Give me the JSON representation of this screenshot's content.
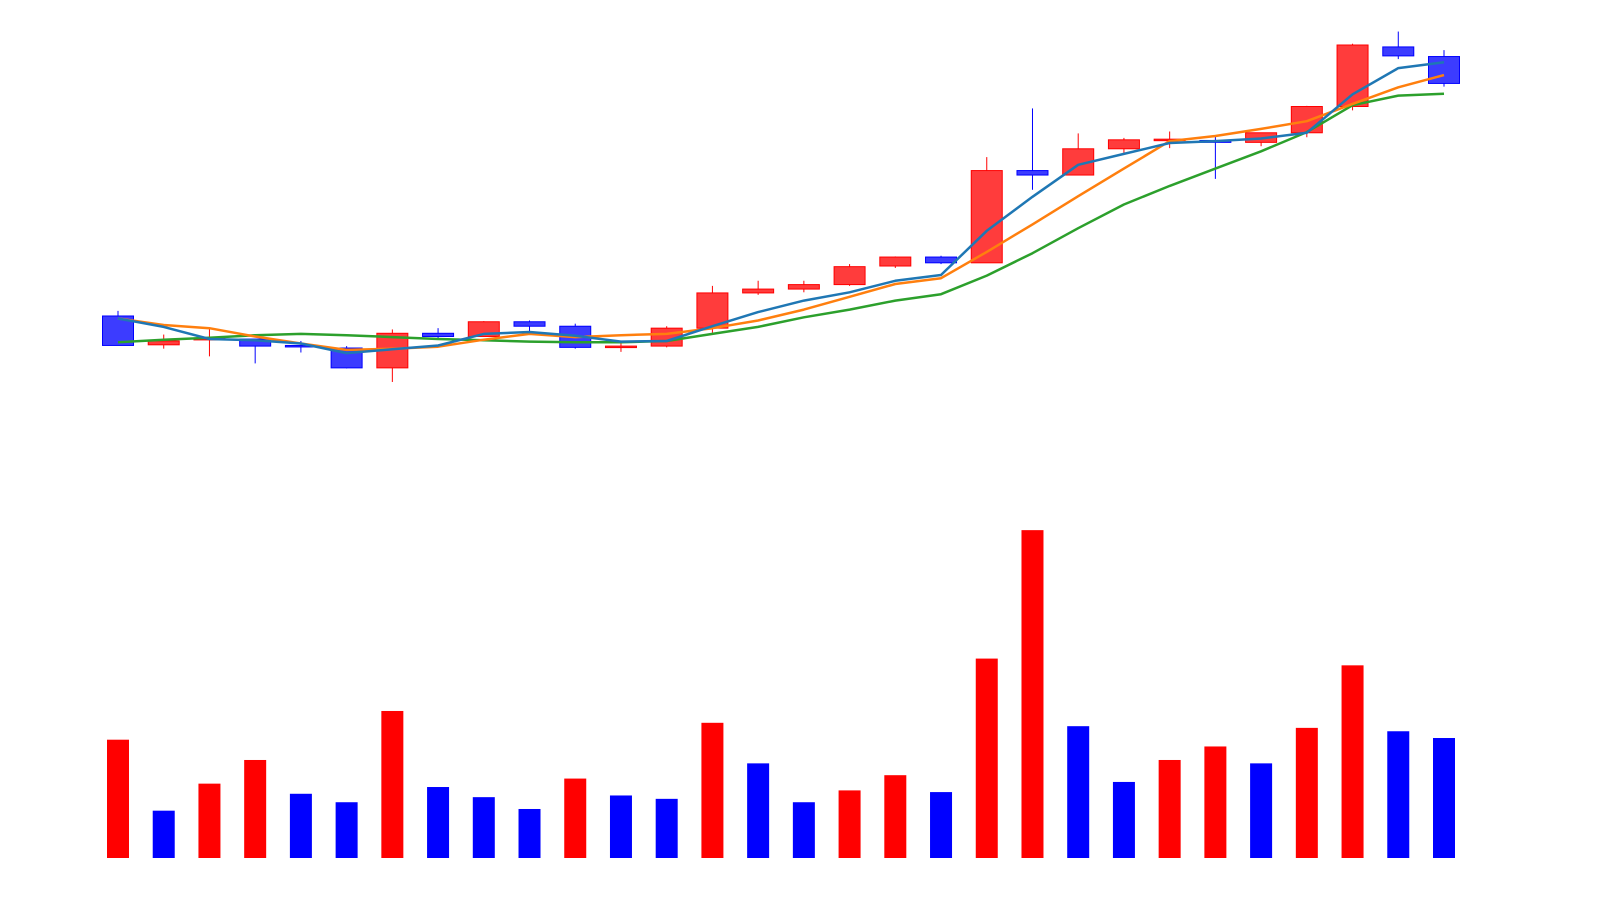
{
  "colors": {
    "up": "#ff0000",
    "down": "#0000ff",
    "up_body": "#ff3c3c",
    "down_body": "#3c3cff",
    "ma_fast": "#1f77b4",
    "ma_mid": "#ff7f0e",
    "ma_slow": "#2ca02c"
  },
  "chart_data": [
    {
      "type": "candlestick",
      "grid": false,
      "ylim": [
        -32,
        0
      ],
      "candles": [
        {
          "open": -21.15,
          "high": -20.75,
          "low": -23.15,
          "close": -23.45,
          "dir": "down"
        },
        {
          "open": -23.4,
          "high": -22.6,
          "low": -23.7,
          "close": -23.1,
          "dir": "up"
        },
        {
          "open": -23.0,
          "high": -22.1,
          "low": -24.3,
          "close": -22.9,
          "dir": "up"
        },
        {
          "open": -22.95,
          "high": -22.95,
          "low": -24.85,
          "close": -23.5,
          "dir": "down"
        },
        {
          "open": -23.45,
          "high": -23.1,
          "low": -24.0,
          "close": -23.45,
          "dir": "down"
        },
        {
          "open": -23.65,
          "high": -23.5,
          "low": -25.25,
          "close": -25.2,
          "dir": "down"
        },
        {
          "open": -25.2,
          "high": -22.2,
          "low": -26.3,
          "close": -22.5,
          "dir": "up"
        },
        {
          "open": -22.5,
          "high": -22.1,
          "low": -23.0,
          "close": -22.75,
          "dir": "down"
        },
        {
          "open": -22.75,
          "high": -21.55,
          "low": -22.75,
          "close": -21.6,
          "dir": "up"
        },
        {
          "open": -21.6,
          "high": -21.5,
          "low": -22.4,
          "close": -21.95,
          "dir": "down"
        },
        {
          "open": -21.95,
          "high": -21.75,
          "low": -23.7,
          "close": -23.6,
          "dir": "down"
        },
        {
          "open": -23.6,
          "high": -23.1,
          "low": -23.95,
          "close": -23.5,
          "dir": "up"
        },
        {
          "open": -23.5,
          "high": -21.95,
          "low": -23.6,
          "close": -22.1,
          "dir": "up"
        },
        {
          "open": -22.1,
          "high": -18.8,
          "low": -22.45,
          "close": -19.35,
          "dir": "up"
        },
        {
          "open": -19.35,
          "high": -18.4,
          "low": -19.5,
          "close": -19.05,
          "dir": "up"
        },
        {
          "open": -19.05,
          "high": -18.4,
          "low": -19.3,
          "close": -18.7,
          "dir": "up"
        },
        {
          "open": -18.7,
          "high": -17.1,
          "low": -18.8,
          "close": -17.3,
          "dir": "up"
        },
        {
          "open": -17.25,
          "high": -16.5,
          "low": -17.4,
          "close": -16.55,
          "dir": "up"
        },
        {
          "open": -16.55,
          "high": -16.45,
          "low": -17.1,
          "close": -17.0,
          "dir": "down"
        },
        {
          "open": -17.0,
          "high": -8.75,
          "low": -16.8,
          "close": -9.8,
          "dir": "up"
        },
        {
          "open": -9.8,
          "high": -4.95,
          "low": -11.3,
          "close": -10.15,
          "dir": "down"
        },
        {
          "open": -10.15,
          "high": -6.9,
          "low": -10.15,
          "close": -8.1,
          "dir": "up"
        },
        {
          "open": -8.1,
          "high": -7.25,
          "low": -8.45,
          "close": -7.4,
          "dir": "up"
        },
        {
          "open": -7.4,
          "high": -6.75,
          "low": -8.05,
          "close": -7.35,
          "dir": "up"
        },
        {
          "open": -7.45,
          "high": -7.15,
          "low": -10.45,
          "close": -7.6,
          "dir": "down"
        },
        {
          "open": -7.6,
          "high": -6.9,
          "low": -7.9,
          "close": -6.85,
          "dir": "up"
        },
        {
          "open": -6.85,
          "high": -4.75,
          "low": -7.2,
          "close": -4.8,
          "dir": "up"
        },
        {
          "open": -4.8,
          "high": 0.1,
          "low": -5.1,
          "close": 0.0,
          "dir": "up"
        },
        {
          "open": -0.15,
          "high": 1.05,
          "low": -1.1,
          "close": -0.85,
          "dir": "down"
        },
        {
          "open": -0.9,
          "high": -0.4,
          "low": -3.25,
          "close": -3.0,
          "dir": "down"
        }
      ],
      "ma_fast": [
        -21.35,
        -22.0,
        -22.95,
        -23.05,
        -23.3,
        -24.05,
        -23.75,
        -23.45,
        -22.55,
        -22.4,
        -22.7,
        -23.15,
        -23.1,
        -21.95,
        -20.85,
        -19.95,
        -19.3,
        -18.4,
        -17.95,
        -14.5,
        -11.85,
        -9.35,
        -8.5,
        -7.65,
        -7.5,
        -7.3,
        -6.85,
        -3.85,
        -1.8,
        -1.35
      ],
      "ma_mid": [
        -21.35,
        -21.85,
        -22.1,
        -22.75,
        -23.3,
        -23.8,
        -23.7,
        -23.55,
        -23.0,
        -22.55,
        -22.8,
        -22.65,
        -22.55,
        -22.1,
        -21.5,
        -20.65,
        -19.65,
        -18.65,
        -18.2,
        -16.15,
        -14.0,
        -11.8,
        -9.65,
        -7.5,
        -7.1,
        -6.55,
        -5.95,
        -4.6,
        -3.3,
        -2.35
      ],
      "ma_slow": [
        -23.2,
        -23.0,
        -22.85,
        -22.65,
        -22.55,
        -22.65,
        -22.8,
        -22.95,
        -23.05,
        -23.15,
        -23.2,
        -23.2,
        -23.1,
        -22.55,
        -22.0,
        -21.25,
        -20.65,
        -19.95,
        -19.45,
        -18.0,
        -16.25,
        -14.3,
        -12.45,
        -11.0,
        -9.65,
        -8.3,
        -6.8,
        -4.7,
        -3.95,
        -3.8
      ]
    },
    {
      "type": "bar",
      "grid": false,
      "ylim": [
        0,
        1.0
      ],
      "values": [
        0.35,
        0.14,
        0.22,
        0.29,
        0.19,
        0.165,
        0.435,
        0.21,
        0.18,
        0.145,
        0.235,
        0.185,
        0.175,
        0.4,
        0.28,
        0.165,
        0.2,
        0.245,
        0.195,
        0.59,
        0.97,
        0.39,
        0.225,
        0.29,
        0.33,
        0.28,
        0.385,
        0.57,
        0.375,
        0.355
      ],
      "directions": [
        "up",
        "down",
        "up",
        "up",
        "down",
        "down",
        "up",
        "down",
        "down",
        "down",
        "up",
        "down",
        "down",
        "up",
        "down",
        "down",
        "up",
        "up",
        "down",
        "up",
        "up",
        "down",
        "down",
        "up",
        "up",
        "down",
        "up",
        "up",
        "down",
        "down"
      ]
    }
  ]
}
